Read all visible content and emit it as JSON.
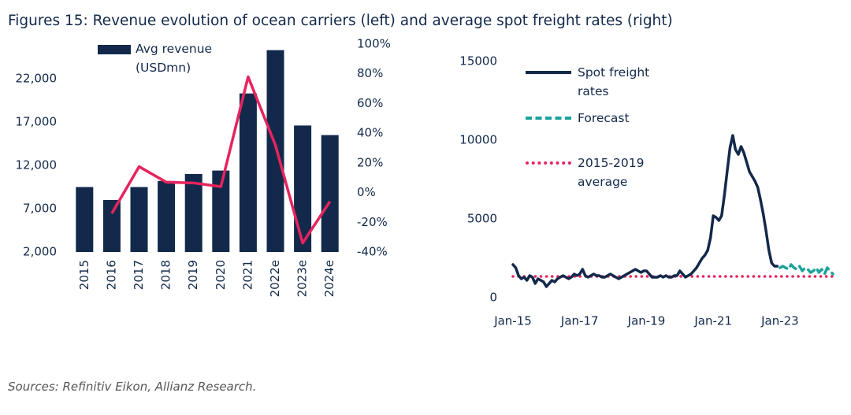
{
  "title": "Figures 15: Revenue evolution of ocean carriers (left) and average spot freight rates (right)",
  "source": "Sources: Refinitiv Eikon, Allianz Research.",
  "chart_data": [
    {
      "type": "bar",
      "categories": [
        "2015",
        "2016",
        "2017",
        "2018",
        "2019",
        "2020",
        "2021",
        "2022e",
        "2023e",
        "2024e"
      ],
      "series": [
        {
          "name": "Avg revenue (USDmn)",
          "type": "bar",
          "color": "#13294B",
          "values": [
            9500,
            8000,
            9500,
            10200,
            11000,
            11400,
            20300,
            25300,
            16600,
            15500
          ]
        },
        {
          "type": "line",
          "axis": "y2",
          "color": "#E6245E",
          "values": [
            null,
            -14,
            17.5,
            7,
            6.5,
            4,
            78,
            32,
            -34,
            -6
          ]
        }
      ],
      "ylim": [
        2000,
        26000
      ],
      "yticks": [
        {
          "value": 2000,
          "label": "2,000"
        },
        {
          "value": 7000,
          "label": "7,000"
        },
        {
          "value": 12000,
          "label": "12,000"
        },
        {
          "value": 17000,
          "label": "17,000"
        },
        {
          "value": 22000,
          "label": "22,000"
        }
      ],
      "y2lim": [
        -40,
        100
      ],
      "y2ticks": [
        {
          "value": -40,
          "label": "-40%"
        },
        {
          "value": -20,
          "label": "-20%"
        },
        {
          "value": 0,
          "label": "0%"
        },
        {
          "value": 20,
          "label": "20%"
        },
        {
          "value": 40,
          "label": "40%"
        },
        {
          "value": 60,
          "label": "60%"
        },
        {
          "value": 80,
          "label": "80%"
        },
        {
          "value": 100,
          "label": "100%"
        }
      ],
      "grid": false
    },
    {
      "type": "line",
      "x": [
        "2015-01",
        "2015-02",
        "2015-03",
        "2015-04",
        "2015-05",
        "2015-06",
        "2015-07",
        "2015-08",
        "2015-09",
        "2015-10",
        "2015-11",
        "2015-12",
        "2016-01",
        "2016-02",
        "2016-03",
        "2016-04",
        "2016-05",
        "2016-06",
        "2016-07",
        "2016-08",
        "2016-09",
        "2016-10",
        "2016-11",
        "2016-12",
        "2017-01",
        "2017-02",
        "2017-03",
        "2017-04",
        "2017-05",
        "2017-06",
        "2017-07",
        "2017-08",
        "2017-09",
        "2017-10",
        "2017-11",
        "2017-12",
        "2018-01",
        "2018-02",
        "2018-03",
        "2018-04",
        "2018-05",
        "2018-06",
        "2018-07",
        "2018-08",
        "2018-09",
        "2018-10",
        "2018-11",
        "2018-12",
        "2019-01",
        "2019-02",
        "2019-03",
        "2019-04",
        "2019-05",
        "2019-06",
        "2019-07",
        "2019-08",
        "2019-09",
        "2019-10",
        "2019-11",
        "2019-12",
        "2020-01",
        "2020-02",
        "2020-03",
        "2020-04",
        "2020-05",
        "2020-06",
        "2020-07",
        "2020-08",
        "2020-09",
        "2020-10",
        "2020-11",
        "2020-12",
        "2021-01",
        "2021-02",
        "2021-03",
        "2021-04",
        "2021-05",
        "2021-06",
        "2021-07",
        "2021-08",
        "2021-09",
        "2021-10",
        "2021-11",
        "2021-12",
        "2022-01",
        "2022-02",
        "2022-03",
        "2022-04",
        "2022-05",
        "2022-06",
        "2022-07",
        "2022-08",
        "2022-09",
        "2022-10",
        "2022-11",
        "2022-12",
        "2023-01",
        "2023-02",
        "2023-03",
        "2023-04",
        "2023-05",
        "2023-06",
        "2023-07",
        "2023-08",
        "2023-09",
        "2023-10",
        "2023-11",
        "2023-12",
        "2024-01",
        "2024-02",
        "2024-03",
        "2024-04",
        "2024-05",
        "2024-06",
        "2024-07",
        "2024-08"
      ],
      "series": [
        {
          "name": "Spot freight rates",
          "color": "#13294B",
          "style": "solid",
          "values": [
            2100,
            1900,
            1400,
            1200,
            1300,
            1100,
            1400,
            1300,
            900,
            1200,
            1100,
            1000,
            700,
            900,
            1100,
            1000,
            1200,
            1300,
            1400,
            1300,
            1200,
            1300,
            1500,
            1400,
            1500,
            1800,
            1400,
            1300,
            1400,
            1500,
            1400,
            1400,
            1300,
            1300,
            1400,
            1500,
            1400,
            1300,
            1200,
            1300,
            1400,
            1500,
            1600,
            1700,
            1800,
            1700,
            1600,
            1700,
            1700,
            1500,
            1300,
            1300,
            1300,
            1400,
            1300,
            1400,
            1300,
            1300,
            1400,
            1400,
            1700,
            1500,
            1300,
            1400,
            1500,
            1700,
            1900,
            2200,
            2500,
            2700,
            3000,
            3800,
            5200,
            5100,
            4900,
            5200,
            6500,
            8000,
            9500,
            10300,
            9400,
            9100,
            9600,
            9200,
            8600,
            8000,
            7700,
            7400,
            7000,
            6200,
            5300,
            4200,
            3000,
            2200,
            2000,
            2000,
            null,
            null,
            null,
            null,
            null,
            null,
            null,
            null,
            null,
            null,
            null,
            null,
            null,
            null,
            null,
            null,
            null,
            null,
            null,
            null
          ]
        },
        {
          "name": "Forecast",
          "color": "#1BA39C",
          "style": "dashed",
          "values": [
            null,
            null,
            null,
            null,
            null,
            null,
            null,
            null,
            null,
            null,
            null,
            null,
            null,
            null,
            null,
            null,
            null,
            null,
            null,
            null,
            null,
            null,
            null,
            null,
            null,
            null,
            null,
            null,
            null,
            null,
            null,
            null,
            null,
            null,
            null,
            null,
            null,
            null,
            null,
            null,
            null,
            null,
            null,
            null,
            null,
            null,
            null,
            null,
            null,
            null,
            null,
            null,
            null,
            null,
            null,
            null,
            null,
            null,
            null,
            null,
            null,
            null,
            null,
            null,
            null,
            null,
            null,
            null,
            null,
            null,
            null,
            null,
            null,
            null,
            null,
            null,
            null,
            null,
            null,
            null,
            null,
            null,
            null,
            null,
            null,
            null,
            null,
            null,
            null,
            null,
            null,
            null,
            null,
            null,
            null,
            null,
            1900,
            2000,
            1900,
            1800,
            2100,
            1900,
            1800,
            2000,
            1700,
            1900,
            1800,
            1600,
            1700,
            1900,
            1600,
            1800,
            1500,
            1900,
            1700,
            1500
          ]
        }
      ],
      "hlines": [
        {
          "name": "2015-2019 average",
          "value": 1350,
          "color": "#E6245E",
          "style": "dotted"
        }
      ],
      "xlim": [
        "2015-01",
        "2024-08"
      ],
      "xticks": [
        {
          "value": "2015-01",
          "label": "Jan-15"
        },
        {
          "value": "2017-01",
          "label": "Jan-17"
        },
        {
          "value": "2019-01",
          "label": "Jan-19"
        },
        {
          "value": "2021-01",
          "label": "Jan-21"
        },
        {
          "value": "2023-01",
          "label": "Jan-23"
        }
      ],
      "ylim": [
        0,
        15000
      ],
      "yticks": [
        0,
        5000,
        10000,
        15000
      ],
      "grid": false
    }
  ]
}
